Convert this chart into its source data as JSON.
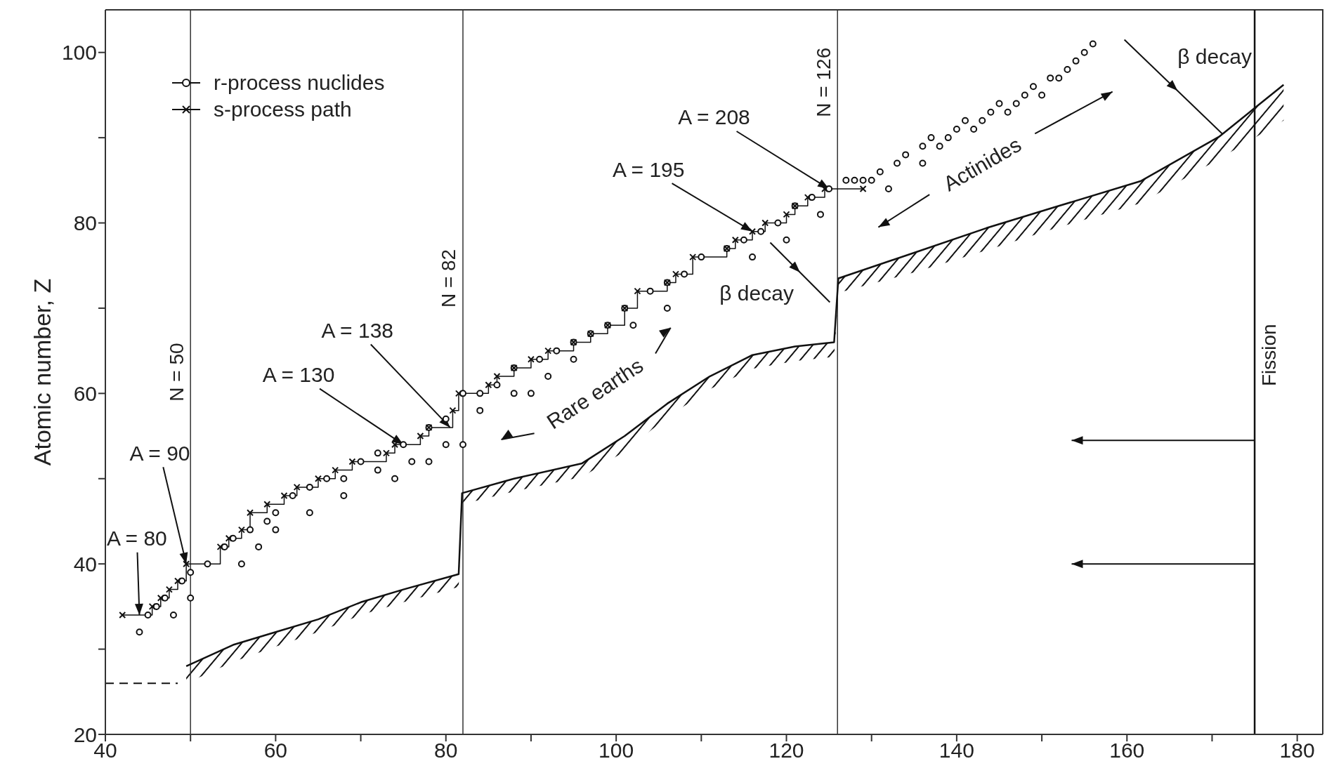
{
  "chart_data": {
    "type": "scatter",
    "ylabel": "Atomic number, Z",
    "xlim": [
      40,
      183
    ],
    "ylim": [
      20,
      105
    ],
    "xticks": [
      40,
      {
        "value": 50,
        "label": null
      },
      60,
      {
        "value": 70,
        "label": null
      },
      80,
      {
        "value": 90,
        "label": null
      },
      100,
      {
        "value": 110,
        "label": null
      },
      120,
      {
        "value": 130,
        "label": null
      },
      140,
      {
        "value": 150,
        "label": null
      },
      160,
      {
        "value": 170,
        "label": null
      },
      180
    ],
    "yticks": [
      20,
      {
        "value": 30,
        "label": null
      },
      40,
      {
        "value": 50,
        "label": null
      },
      60,
      {
        "value": 70,
        "label": null
      },
      80,
      {
        "value": 90,
        "label": null
      },
      100
    ],
    "legend": "top left",
    "series": [
      {
        "name": "r-process nuclides",
        "color": "#111111",
        "marker": "circle",
        "x": [
          44,
          45,
          46,
          47,
          48,
          49,
          50,
          50,
          52,
          54,
          55,
          56,
          57,
          58,
          59,
          60,
          60,
          62,
          64,
          64,
          66,
          68,
          68,
          70,
          72,
          72,
          74,
          75,
          76,
          78,
          78,
          80,
          80,
          82,
          82,
          84,
          84,
          86,
          88,
          88,
          90,
          91,
          92,
          93,
          95,
          95,
          97,
          99,
          102,
          101,
          104,
          106,
          106,
          108,
          110,
          113,
          115,
          116,
          117,
          119,
          120,
          121,
          123,
          124,
          125,
          127,
          128,
          129,
          130,
          131,
          132,
          133,
          134,
          136,
          136,
          137,
          138,
          139,
          140,
          141,
          142,
          143,
          144,
          145,
          146,
          147,
          148,
          149,
          150,
          151,
          152,
          153,
          154,
          155,
          156
        ],
        "values": [
          32,
          34,
          35,
          36,
          34,
          38,
          36,
          39,
          40,
          42,
          43,
          40,
          44,
          42,
          45,
          44,
          46,
          48,
          46,
          49,
          50,
          48,
          50,
          52,
          51,
          53,
          50,
          54,
          52,
          52,
          56,
          54,
          57,
          54,
          60,
          58,
          60,
          61,
          60,
          63,
          60,
          64,
          62,
          65,
          64,
          66,
          67,
          68,
          68,
          70,
          72,
          70,
          73,
          74,
          76,
          77,
          78,
          76,
          79,
          80,
          78,
          82,
          83,
          81,
          84,
          85,
          85,
          85,
          85,
          86,
          84,
          87,
          88,
          87,
          89,
          90,
          89,
          90,
          91,
          92,
          91,
          92,
          93,
          94,
          93,
          94,
          95,
          96,
          95,
          97,
          97,
          98,
          99,
          100,
          101
        ]
      },
      {
        "type": "step",
        "name": "s-process path",
        "color": "#111111",
        "marker": "cross",
        "x": [
          42,
          45.5,
          46.5,
          47.5,
          48.5,
          49.5,
          53.5,
          54.5,
          56,
          57,
          59,
          61,
          62.5,
          65,
          67,
          69,
          73,
          74,
          77,
          78,
          80.8,
          81.5,
          85,
          86,
          88,
          90,
          92,
          95,
          97,
          99,
          101,
          102.5,
          106,
          107,
          109,
          113,
          114,
          116,
          117.5,
          120,
          121,
          122.5,
          124.5,
          129
        ],
        "values": [
          34,
          35,
          36,
          37,
          38,
          40,
          42,
          43,
          44,
          46,
          47,
          48,
          49,
          50,
          51,
          52,
          53,
          54,
          55,
          56,
          58,
          60,
          61,
          62,
          63,
          64,
          65,
          66,
          67,
          68,
          70,
          72,
          73,
          74,
          76,
          77,
          78,
          79,
          80,
          81,
          82,
          83,
          84,
          84
        ]
      },
      {
        "type": "line",
        "color": "#111111",
        "line_style": "dashed",
        "x": [
          40,
          48.5
        ],
        "values": [
          26,
          26
        ]
      },
      {
        "type": "line",
        "color": "#111111",
        "x": [
          49.5,
          55,
          60,
          65,
          70,
          75,
          81.5,
          81.9,
          88,
          96,
          101,
          106,
          111,
          116,
          121,
          125.6,
          126.1,
          135,
          143.5,
          152,
          161.6,
          170.8,
          178.4
        ],
        "values": [
          28,
          30.5,
          32,
          33.5,
          35.5,
          37,
          38.8,
          48.3,
          50,
          51.8,
          55,
          58.8,
          62,
          64.5,
          65.5,
          66,
          73.5,
          76.5,
          79.4,
          82,
          84.9,
          90.1,
          96.2
        ],
        "lower": [
          26,
          28.5,
          30.3,
          32,
          34,
          35.5,
          37.3,
          47,
          48.5,
          50.2,
          53.2,
          57.2,
          60.5,
          62.9,
          63.8,
          64.3,
          71.8,
          74.2,
          76.8,
          79.5,
          82.3,
          87.5,
          92
        ],
        "upper": [
          28,
          30.5,
          32,
          33.5,
          35.5,
          37,
          38.8,
          48.3,
          50,
          51.8,
          55,
          58.8,
          62,
          64.5,
          65.5,
          66,
          73.5,
          76.5,
          79.4,
          82,
          84.9,
          90.1,
          96.2
        ]
      }
    ],
    "ref_lines": [
      {
        "axis": "x",
        "value": 50,
        "label": "N = 50",
        "color": "#333333"
      },
      {
        "axis": "x",
        "value": 82,
        "label": "N = 82",
        "color": "#333333"
      },
      {
        "axis": "x",
        "value": 126,
        "label": "N = 126",
        "color": "#333333"
      },
      {
        "axis": "x",
        "value": 175,
        "label": "Fission",
        "color": "#111111"
      }
    ],
    "annotations": [
      {
        "text": "A = 80",
        "x": 44,
        "y": 34
      },
      {
        "text": "A = 90",
        "x": 49.5,
        "y": 40
      },
      {
        "text": "A = 130",
        "x": 75,
        "y": 54
      },
      {
        "text": "A = 138",
        "x": 80.5,
        "y": 56
      },
      {
        "text": "A = 195",
        "x": 116,
        "y": 79
      },
      {
        "text": "A = 208",
        "x": 125,
        "y": 84
      },
      "Rare earths",
      "Actinides",
      "β decay",
      "β decay"
    ]
  }
}
